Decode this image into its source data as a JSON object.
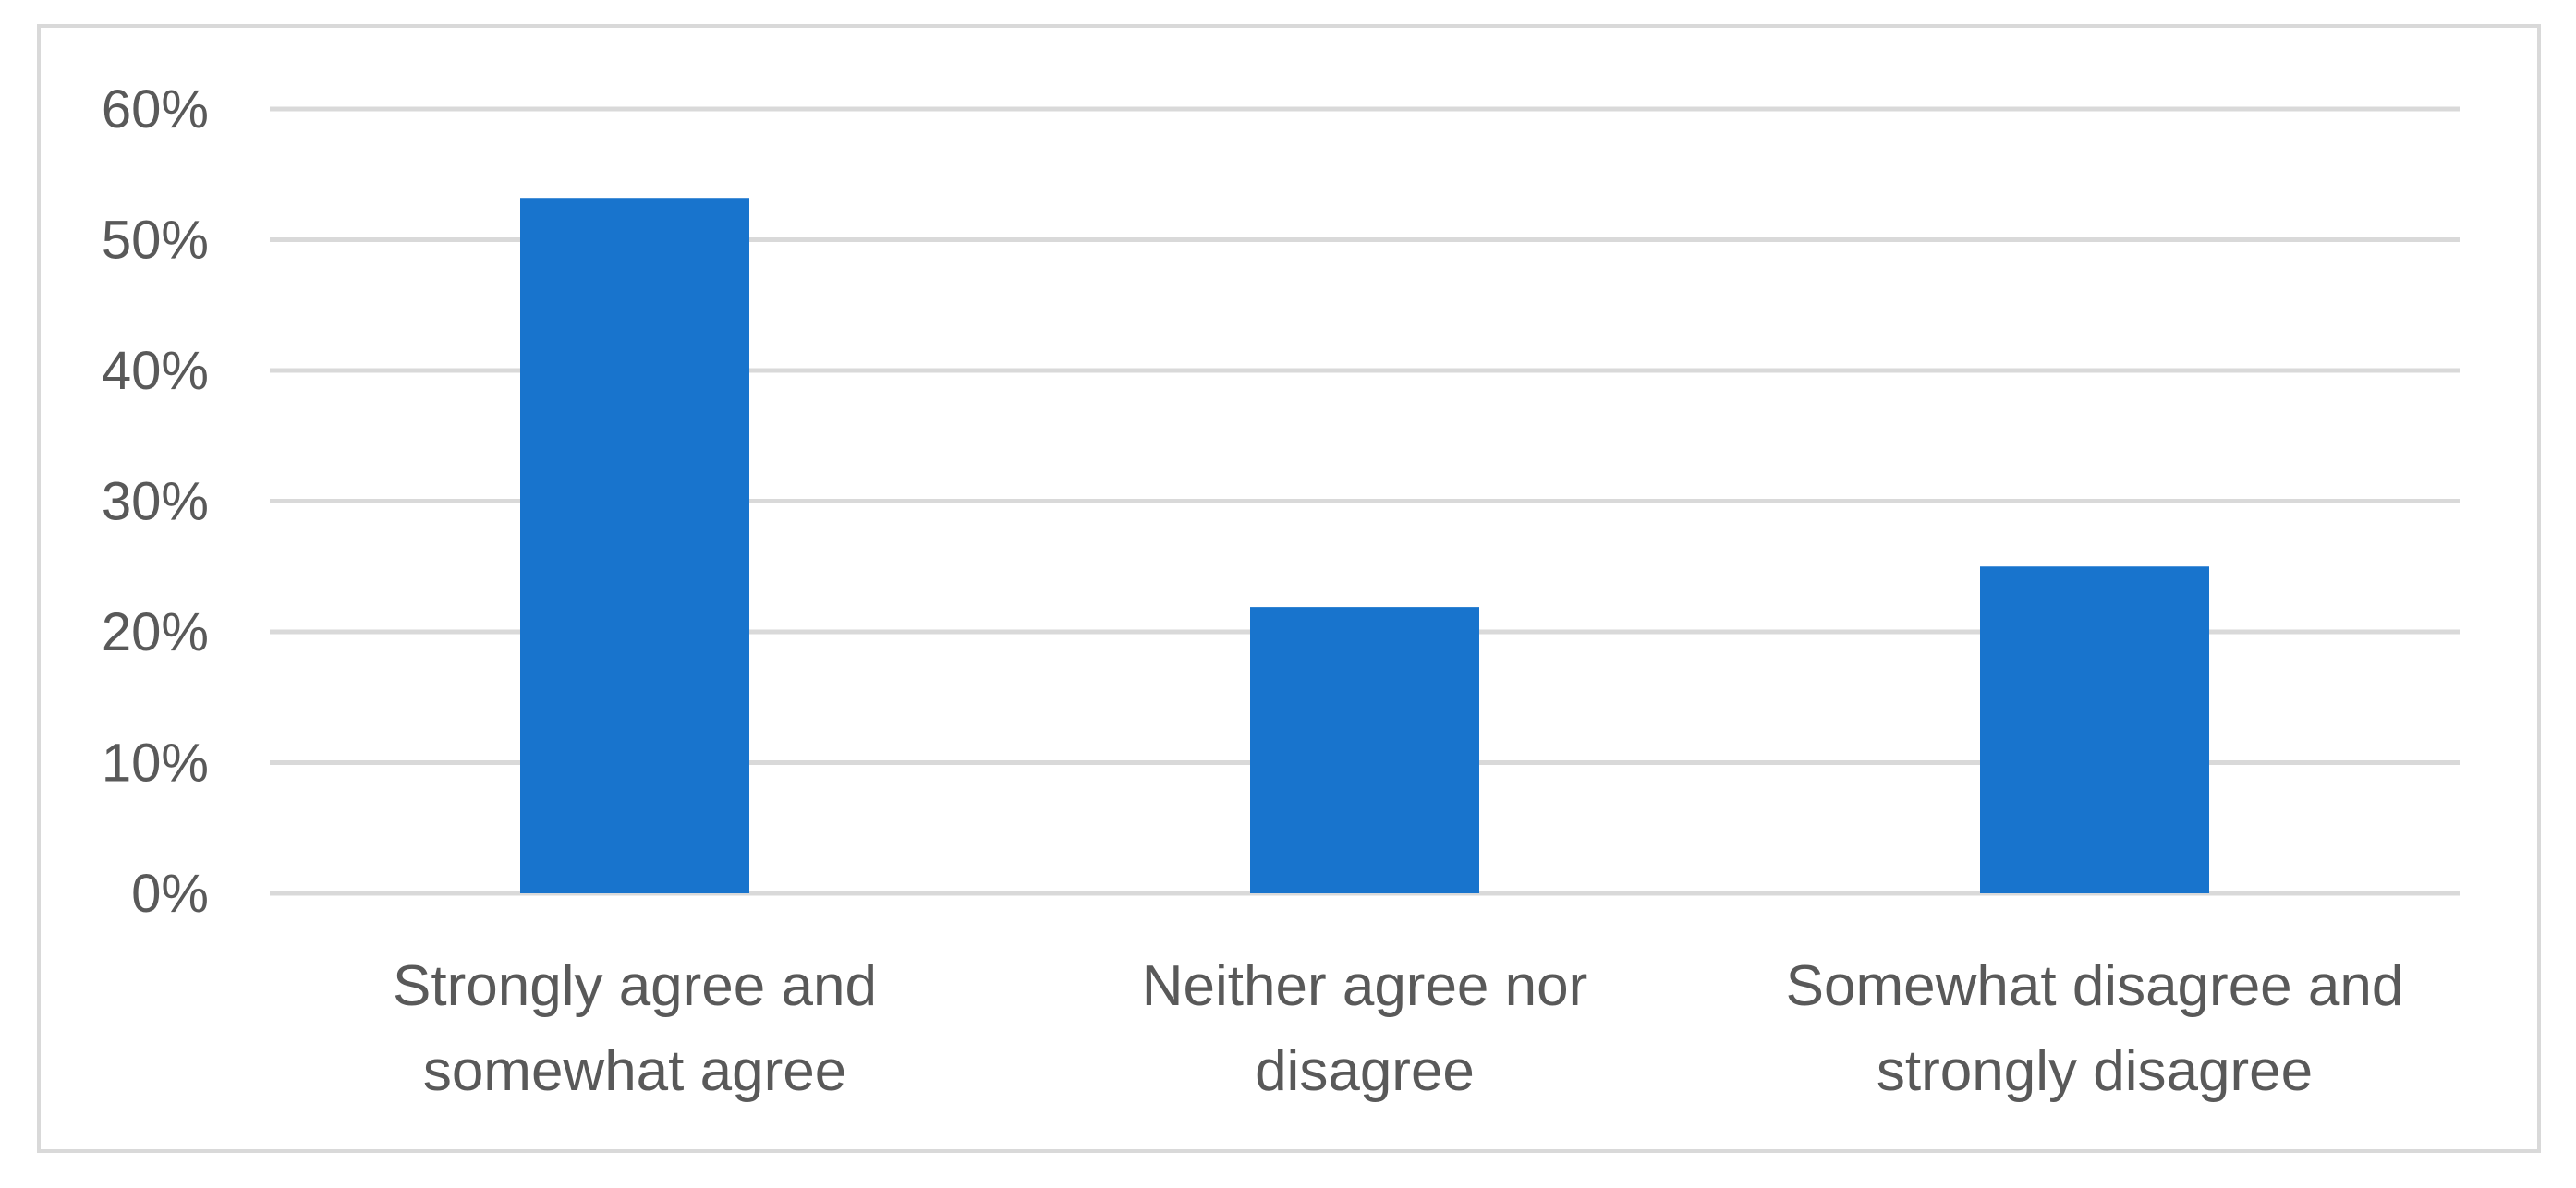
{
  "chart_data": {
    "type": "bar",
    "title": "",
    "xlabel": "",
    "ylabel": "",
    "categories": [
      [
        "Strongly agree and",
        "somewhat agree"
      ],
      [
        "Neither agree nor",
        "disagree"
      ],
      [
        "Somewhat disagree and",
        "strongly disagree"
      ]
    ],
    "values": [
      53.2,
      21.9,
      25.0
    ],
    "ylim": [
      0,
      60
    ],
    "yticks": [
      0,
      10,
      20,
      30,
      40,
      50,
      60
    ],
    "ytick_labels": [
      "0%",
      "10%",
      "20%",
      "30%",
      "40%",
      "50%",
      "60%"
    ],
    "bar_color": "#1874CD",
    "grid_color": "#d9d9d9",
    "grid": true,
    "legend": "none"
  }
}
